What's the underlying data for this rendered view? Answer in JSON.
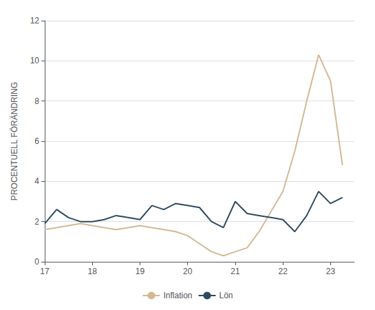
{
  "chart_data": {
    "type": "line",
    "ylabel": "PROCENTUELL FÖRÄNDRING",
    "x": [
      17.0,
      17.25,
      17.5,
      17.75,
      18.0,
      18.25,
      18.5,
      18.75,
      19.0,
      19.25,
      19.5,
      19.75,
      20.0,
      20.25,
      20.5,
      20.75,
      21.0,
      21.25,
      21.5,
      21.75,
      22.0,
      22.25,
      22.5,
      22.75,
      23.0,
      23.25
    ],
    "series": [
      {
        "name": "Inflation",
        "color": "#d4b896",
        "values": [
          1.6,
          1.7,
          1.8,
          1.9,
          1.8,
          1.7,
          1.6,
          1.7,
          1.8,
          1.7,
          1.6,
          1.5,
          1.3,
          0.9,
          0.5,
          0.3,
          0.5,
          0.7,
          1.5,
          2.5,
          3.5,
          5.5,
          8.0,
          10.3,
          9.0,
          4.8
        ]
      },
      {
        "name": "Lön",
        "color": "#2d4a5e",
        "values": [
          1.9,
          2.6,
          2.2,
          2.0,
          2.0,
          2.1,
          2.3,
          2.2,
          2.1,
          2.8,
          2.6,
          2.9,
          2.8,
          2.7,
          2.0,
          1.7,
          3.0,
          2.4,
          2.3,
          2.2,
          2.1,
          1.5,
          2.3,
          3.5,
          2.9,
          3.2
        ]
      }
    ],
    "xlim": [
      17,
      23.5
    ],
    "xticks": [
      17,
      18,
      19,
      20,
      21,
      22,
      23
    ],
    "ylim": [
      0,
      12
    ],
    "yticks": [
      0,
      2,
      4,
      6,
      8,
      10,
      12
    ],
    "grid": true,
    "legend": "bottom"
  }
}
